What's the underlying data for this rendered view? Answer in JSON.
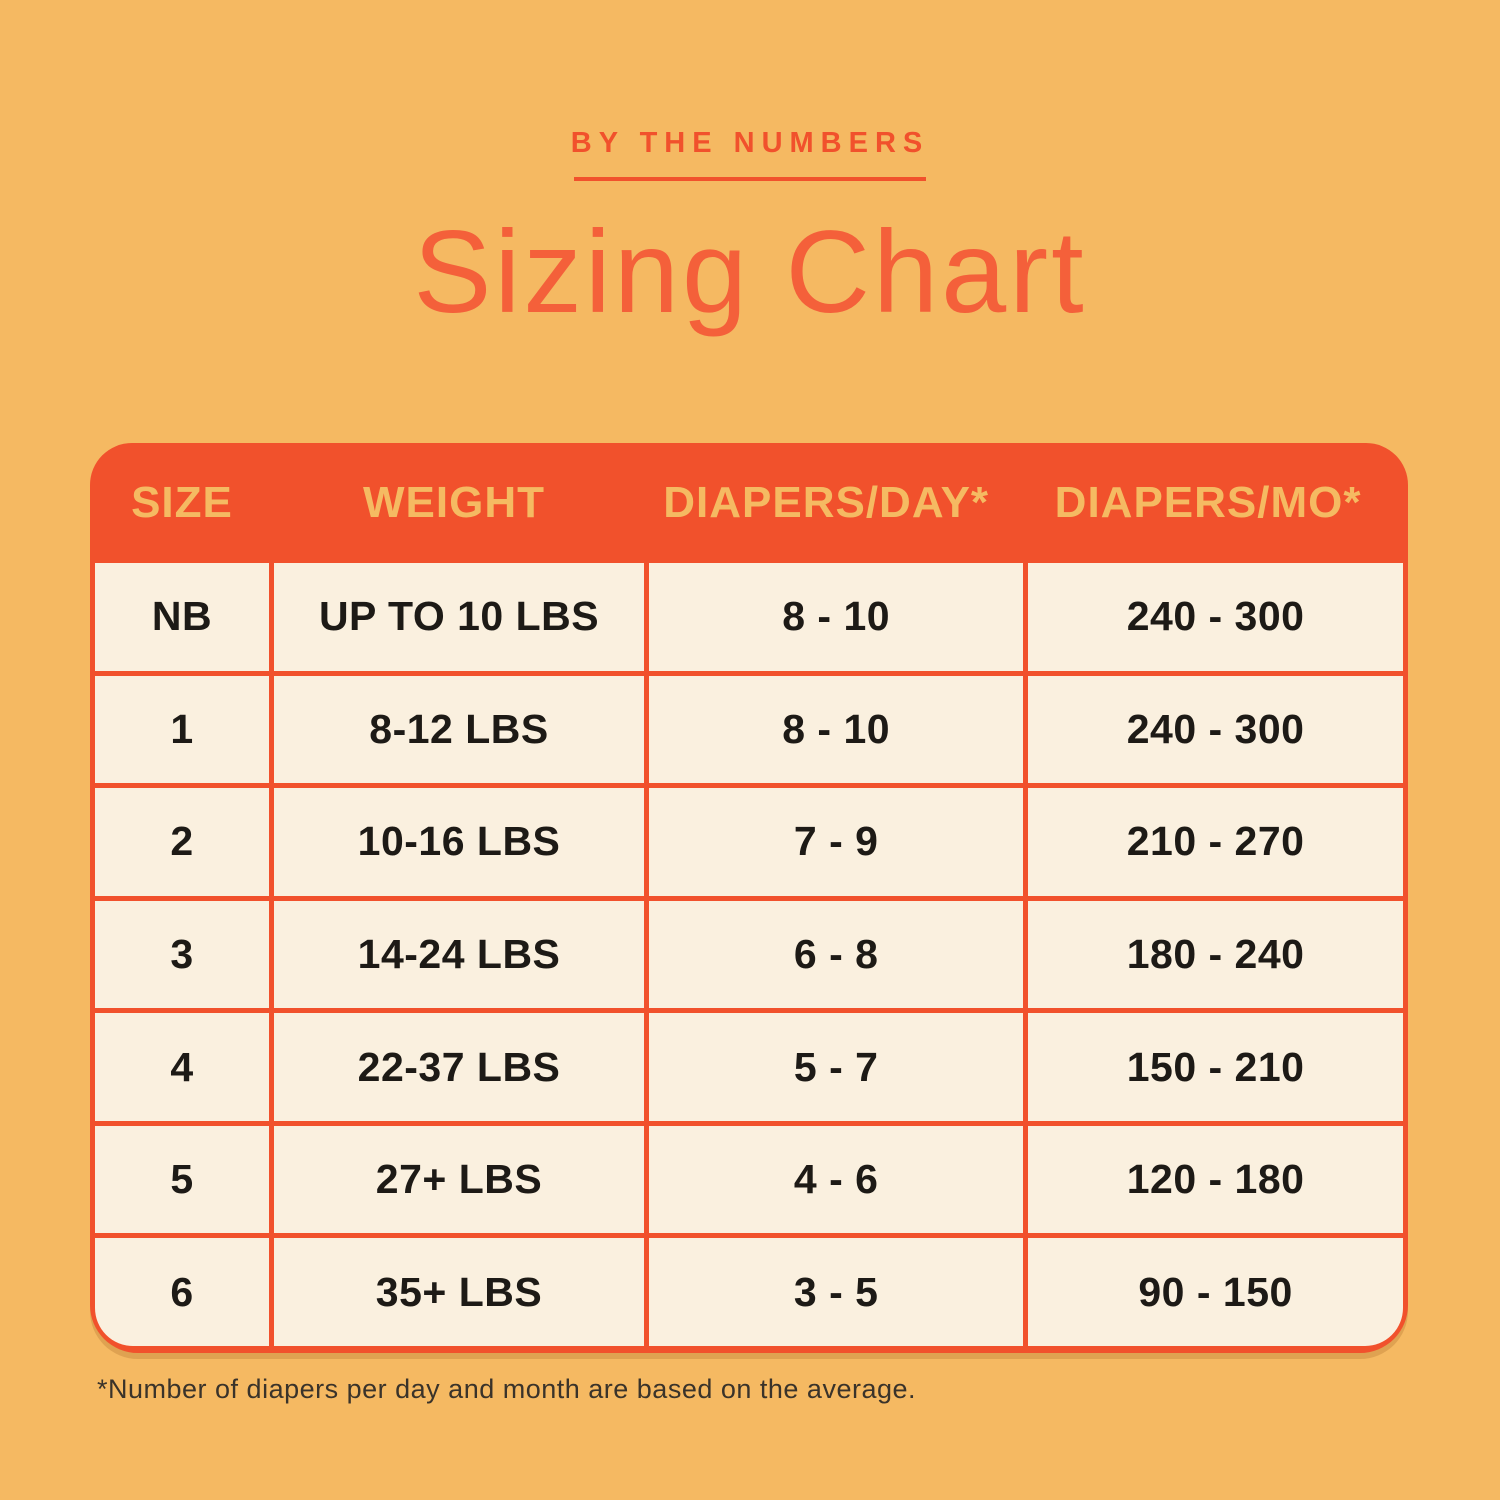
{
  "header": {
    "eyebrow": "BY THE NUMBERS",
    "title": "Sizing Chart"
  },
  "footnote": "*Number of diapers per day and month are based on the average.",
  "colors": {
    "background": "#F5B962",
    "accent": "#F1512C",
    "title_text": "#F4603A",
    "cell_background": "#FAF0DF",
    "header_text": "#F5BA62",
    "cell_text": "#1D1A16",
    "footnote_text": "#3A332A"
  },
  "chart_data": {
    "type": "table",
    "title": "Sizing Chart",
    "subtitle": "BY THE NUMBERS",
    "columns": [
      "SIZE",
      "WEIGHT",
      "DIAPERS/DAY*",
      "DIAPERS/MO*"
    ],
    "rows": [
      [
        "NB",
        "UP TO 10 LBS",
        "8 - 10",
        "240 - 300"
      ],
      [
        "1",
        "8-12 LBS",
        "8 - 10",
        "240 - 300"
      ],
      [
        "2",
        "10-16 LBS",
        "7 - 9",
        "210 - 270"
      ],
      [
        "3",
        "14-24 LBS",
        "6 - 8",
        "180 - 240"
      ],
      [
        "4",
        "22-37 LBS",
        "5 - 7",
        "150 - 210"
      ],
      [
        "5",
        "27+ LBS",
        "4 - 6",
        "120 - 180"
      ],
      [
        "6",
        "35+ LBS",
        "3 - 5",
        "90 - 150"
      ]
    ],
    "footnote": "*Number of diapers per day and month are based on the average."
  }
}
